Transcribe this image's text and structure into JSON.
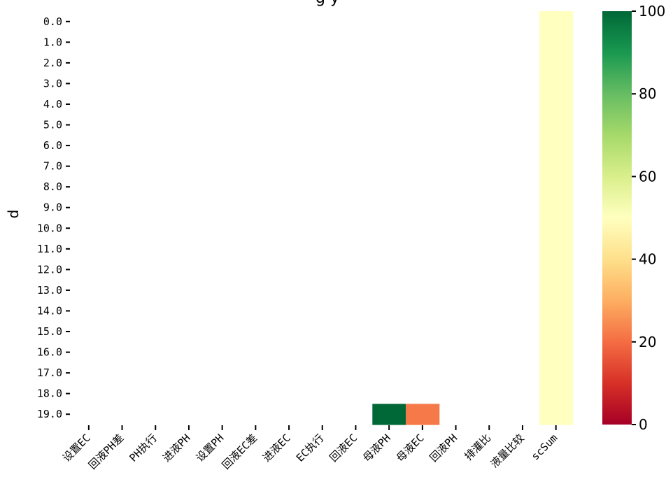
{
  "chart_data": {
    "type": "heatmap",
    "title": "g y",
    "xlabel": "",
    "ylabel": "d",
    "x_categories": [
      "设置EC",
      "回液PH差",
      "PH执行",
      "进液PH",
      "设置PH",
      "回液EC差",
      "进液EC",
      "EC执行",
      "回液EC",
      "母液PH",
      "母液EC",
      "回液PH",
      "排灌比",
      "液量比较",
      "scSum"
    ],
    "y_categories": [
      "0.0",
      "1.0",
      "2.0",
      "3.0",
      "4.0",
      "5.0",
      "6.0",
      "7.0",
      "8.0",
      "9.0",
      "10.0",
      "11.0",
      "12.0",
      "13.0",
      "14.0",
      "15.0",
      "16.0",
      "17.0",
      "18.0",
      "19.0"
    ],
    "cells": [
      {
        "x": "scSum",
        "y": "0.0",
        "value": 50
      },
      {
        "x": "scSum",
        "y": "1.0",
        "value": 50
      },
      {
        "x": "scSum",
        "y": "2.0",
        "value": 50
      },
      {
        "x": "scSum",
        "y": "3.0",
        "value": 50
      },
      {
        "x": "scSum",
        "y": "4.0",
        "value": 50
      },
      {
        "x": "scSum",
        "y": "5.0",
        "value": 50
      },
      {
        "x": "scSum",
        "y": "6.0",
        "value": 50
      },
      {
        "x": "scSum",
        "y": "7.0",
        "value": 50
      },
      {
        "x": "scSum",
        "y": "8.0",
        "value": 50
      },
      {
        "x": "scSum",
        "y": "9.0",
        "value": 50
      },
      {
        "x": "scSum",
        "y": "10.0",
        "value": 50
      },
      {
        "x": "scSum",
        "y": "11.0",
        "value": 50
      },
      {
        "x": "scSum",
        "y": "12.0",
        "value": 50
      },
      {
        "x": "scSum",
        "y": "13.0",
        "value": 50
      },
      {
        "x": "scSum",
        "y": "14.0",
        "value": 50
      },
      {
        "x": "scSum",
        "y": "15.0",
        "value": 50
      },
      {
        "x": "scSum",
        "y": "16.0",
        "value": 50
      },
      {
        "x": "scSum",
        "y": "17.0",
        "value": 50
      },
      {
        "x": "scSum",
        "y": "18.0",
        "value": 50
      },
      {
        "x": "scSum",
        "y": "19.0",
        "value": 50
      },
      {
        "x": "母液PH",
        "y": "19.0",
        "value": 100
      },
      {
        "x": "母液EC",
        "y": "19.0",
        "value": 22
      }
    ],
    "colorbar": {
      "cmap": "RdYlGn",
      "vmin": 0,
      "vmax": 100,
      "ticks": [
        0,
        20,
        40,
        60,
        80,
        100
      ]
    },
    "colors": {
      "low": "#a50026",
      "mid": "#ffffbf",
      "high": "#006837"
    }
  }
}
